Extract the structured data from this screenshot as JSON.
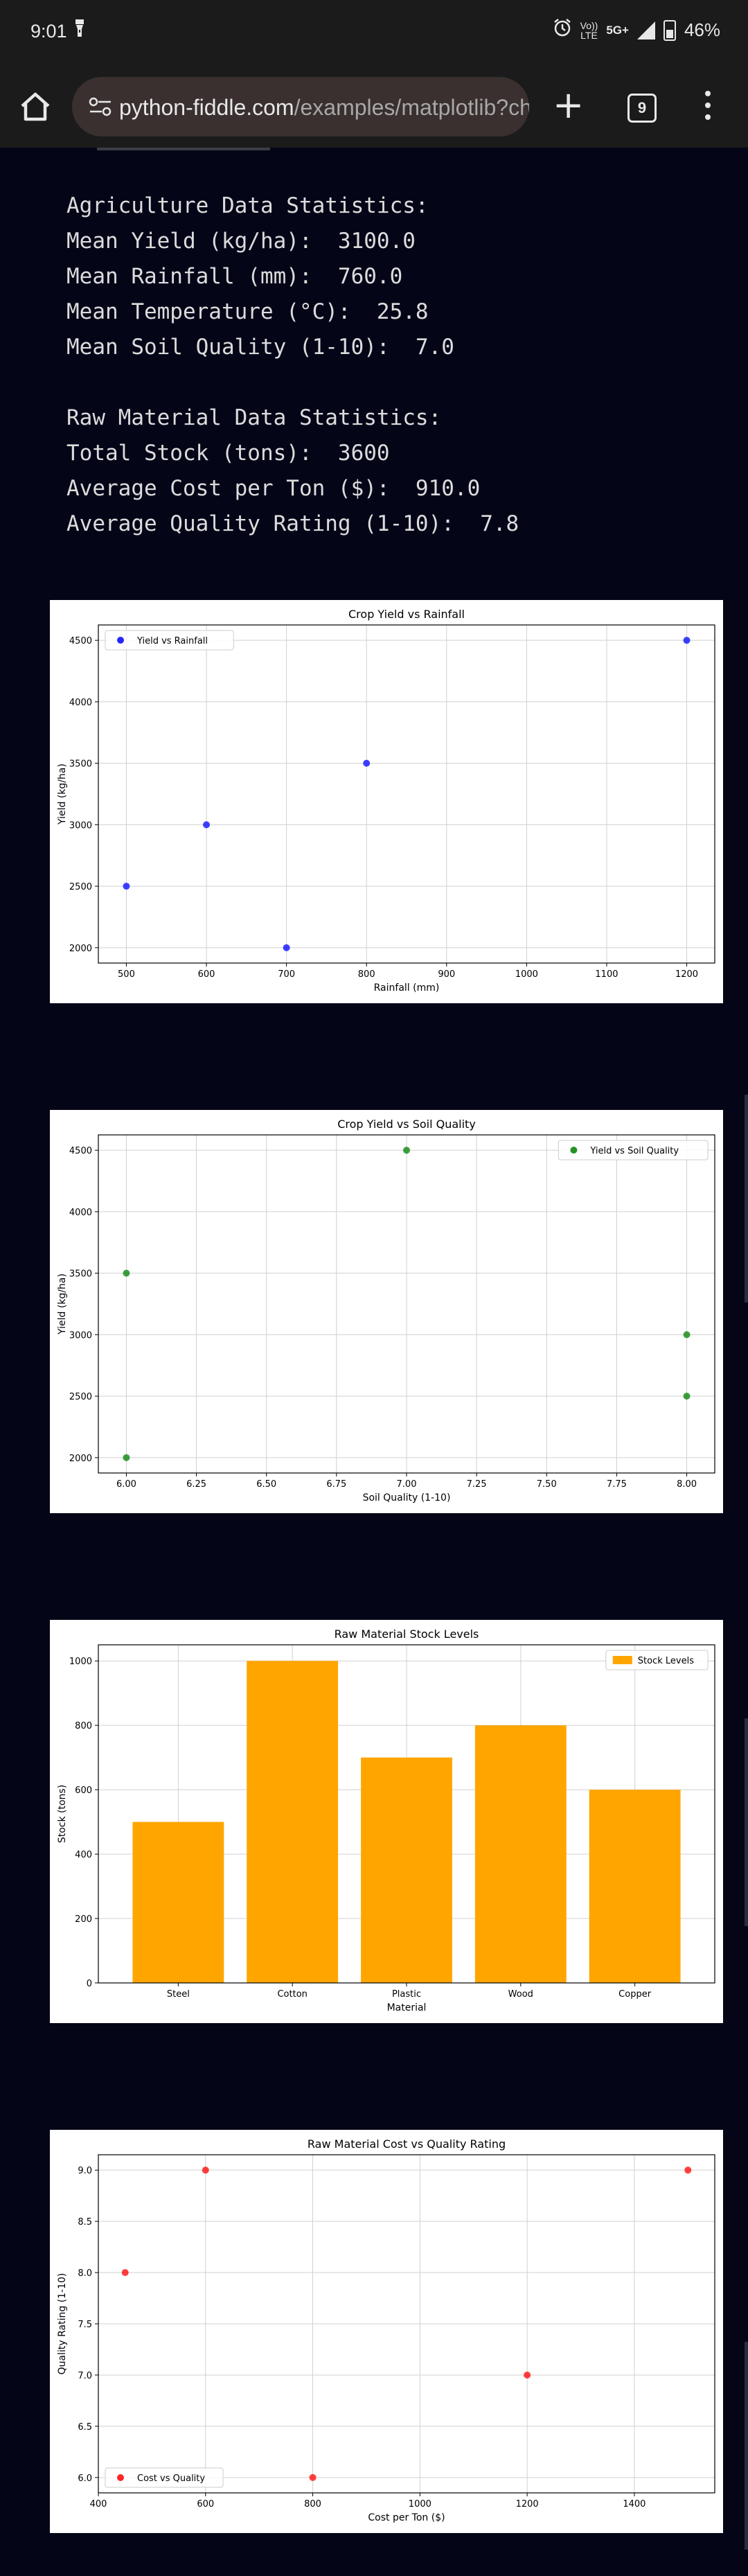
{
  "status_bar": {
    "time": "9:01",
    "network_top": "Vo))",
    "network_bottom": "LTE",
    "network_type": "5G+",
    "battery": "46%",
    "icons": [
      "torch-icon",
      "alarm-icon",
      "signal-icon",
      "battery-icon"
    ]
  },
  "browser": {
    "url_domain": "python-fiddle.com",
    "url_path": "/examples/matplotlib?chec",
    "tab_count": "9",
    "new_tab_symbol": "+",
    "icons": [
      "home-icon",
      "site-settings-icon",
      "plus-icon",
      "tabs-icon",
      "more-vert-icon"
    ]
  },
  "console": {
    "lines": [
      "Agriculture Data Statistics:",
      "Mean Yield (kg/ha):  3100.0",
      "Mean Rainfall (mm):  760.0",
      "Mean Temperature (°C):  25.8",
      "Mean Soil Quality (1-10):  7.0",
      "",
      "Raw Material Data Statistics:",
      "Total Stock (tons):  3600",
      "Average Cost per Ton ($):  910.0",
      "Average Quality Rating (1-10):  7.8"
    ]
  },
  "chart_data": [
    {
      "type": "scatter",
      "title": "Crop Yield vs Rainfall",
      "xlabel": "Rainfall (mm)",
      "ylabel": "Yield (kg/ha)",
      "x": [
        500,
        600,
        700,
        800,
        1200
      ],
      "y": [
        2500,
        3000,
        2000,
        3500,
        4500
      ],
      "xticks": [
        "500",
        "600",
        "700",
        "800",
        "900",
        "1000",
        "1100",
        "1200"
      ],
      "xtick_values": [
        500,
        600,
        700,
        800,
        900,
        1000,
        1100,
        1200
      ],
      "yticks": [
        "2000",
        "2500",
        "3000",
        "3500",
        "4000",
        "4500"
      ],
      "ytick_values": [
        2000,
        2500,
        3000,
        3500,
        4000,
        4500
      ],
      "xlim": [
        465,
        1235
      ],
      "ylim": [
        1875,
        4625
      ],
      "legend": "Yield vs Rainfall",
      "legend_position": "upper-left",
      "color": "#0000ff",
      "grid": true
    },
    {
      "type": "scatter",
      "title": "Crop Yield vs Soil Quality",
      "xlabel": "Soil Quality (1-10)",
      "ylabel": "Yield (kg/ha)",
      "x": [
        6,
        6,
        7,
        8,
        8
      ],
      "y": [
        3500,
        2000,
        4500,
        3000,
        2500
      ],
      "xticks": [
        "6.00",
        "6.25",
        "6.50",
        "6.75",
        "7.00",
        "7.25",
        "7.50",
        "7.75",
        "8.00"
      ],
      "xtick_values": [
        6.0,
        6.25,
        6.5,
        6.75,
        7.0,
        7.25,
        7.5,
        7.75,
        8.0
      ],
      "yticks": [
        "2000",
        "2500",
        "3000",
        "3500",
        "4000",
        "4500"
      ],
      "ytick_values": [
        2000,
        2500,
        3000,
        3500,
        4000,
        4500
      ],
      "xlim": [
        5.9,
        8.1
      ],
      "ylim": [
        1875,
        4625
      ],
      "legend": "Yield vs Soil Quality",
      "legend_position": "upper-right",
      "color": "#008000",
      "grid": true
    },
    {
      "type": "bar",
      "title": "Raw Material Stock Levels",
      "xlabel": "Material",
      "ylabel": "Stock (tons)",
      "categories": [
        "Steel",
        "Cotton",
        "Plastic",
        "Wood",
        "Copper"
      ],
      "values": [
        500,
        1000,
        700,
        800,
        600
      ],
      "yticks": [
        "0",
        "200",
        "400",
        "600",
        "800",
        "1000"
      ],
      "ytick_values": [
        0,
        200,
        400,
        600,
        800,
        1000
      ],
      "ylim": [
        0,
        1050
      ],
      "legend": "Stock Levels",
      "legend_position": "upper-right",
      "color": "#ffa500",
      "grid": true
    },
    {
      "type": "scatter",
      "title": "Raw Material Cost vs Quality Rating",
      "xlabel": "Cost per Ton ($)",
      "ylabel": "Quality Rating (1-10)",
      "x": [
        450,
        600,
        800,
        1200,
        1500
      ],
      "y": [
        8,
        9,
        6,
        7,
        9
      ],
      "xticks": [
        "400",
        "600",
        "800",
        "1000",
        "1200",
        "1400"
      ],
      "xtick_values": [
        400,
        600,
        800,
        1000,
        1200,
        1400
      ],
      "yticks": [
        "6.0",
        "6.5",
        "7.0",
        "7.5",
        "8.0",
        "8.5",
        "9.0"
      ],
      "ytick_values": [
        6.0,
        6.5,
        7.0,
        7.5,
        8.0,
        8.5,
        9.0
      ],
      "xlim": [
        400,
        1550
      ],
      "ylim": [
        5.85,
        9.15
      ],
      "legend": "Cost vs Quality",
      "legend_position": "lower-left",
      "color": "#ff0000",
      "grid": true
    }
  ]
}
